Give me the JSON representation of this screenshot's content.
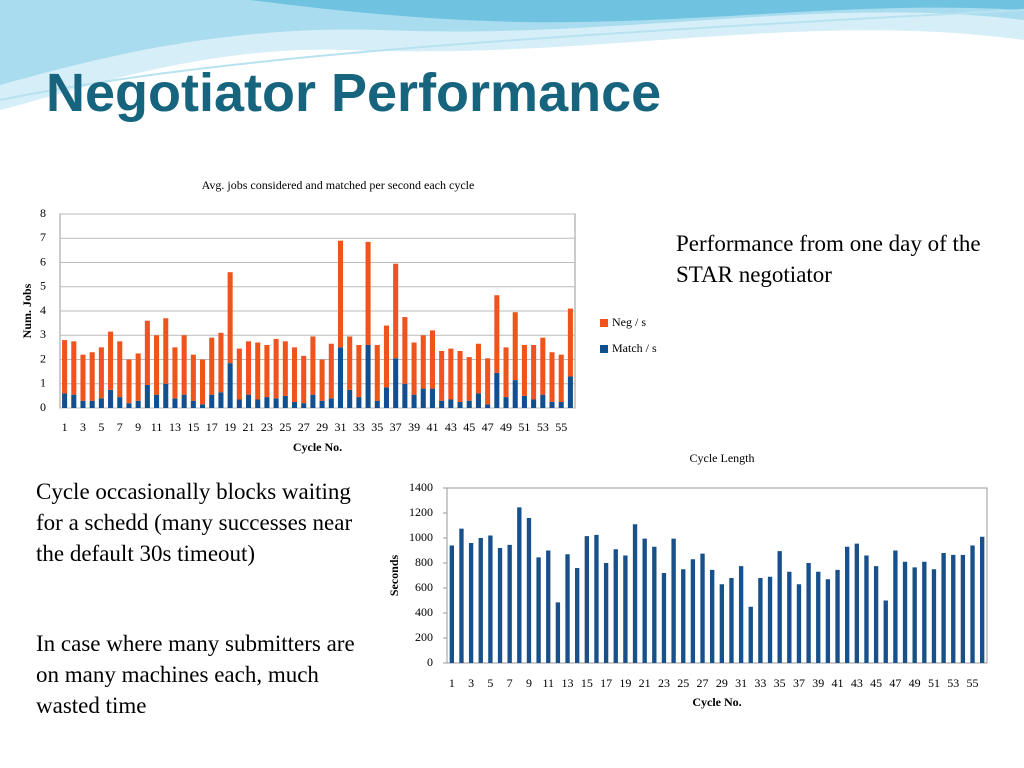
{
  "title": "Negotiator Performance",
  "side_text": "Performance from one day of the STAR negotiator",
  "body": [
    "Cycle occasionally blocks waiting for a schedd (many successes near the default 30s timeout)",
    "In case where many submitters are on many machines each, much wasted time"
  ],
  "chart_data": [
    {
      "type": "bar",
      "stacked": true,
      "title": "Avg. jobs considered and matched per second each cycle",
      "x_label": "Cycle No.",
      "y_label": "Num. Jobs",
      "categories": [
        1,
        null,
        3,
        null,
        5,
        null,
        7,
        null,
        9,
        null,
        11,
        null,
        13,
        null,
        15,
        null,
        17,
        null,
        19,
        null,
        21,
        null,
        23,
        null,
        25,
        null,
        27,
        null,
        29,
        null,
        31,
        null,
        33,
        null,
        35,
        null,
        37,
        null,
        39,
        null,
        41,
        null,
        43,
        null,
        45,
        null,
        47,
        null,
        49,
        null,
        51,
        null,
        53,
        null,
        55,
        null
      ],
      "series": [
        {
          "name": "Match / s",
          "color": "#124f8e",
          "values": [
            0.6,
            0.55,
            0.3,
            0.3,
            0.4,
            0.75,
            0.45,
            0.2,
            0.3,
            0.95,
            0.55,
            1.0,
            0.4,
            0.55,
            0.3,
            0.15,
            0.55,
            0.65,
            1.85,
            0.35,
            0.55,
            0.35,
            0.45,
            0.4,
            0.5,
            0.25,
            0.2,
            0.55,
            0.3,
            0.4,
            2.5,
            0.75,
            0.45,
            2.6,
            0.3,
            0.85,
            2.05,
            1.0,
            0.55,
            0.8,
            0.8,
            0.3,
            0.35,
            0.25,
            0.3,
            0.6,
            0.15,
            1.45,
            0.45,
            1.15,
            0.5,
            0.35,
            0.55,
            0.25,
            0.25,
            1.3
          ]
        },
        {
          "name": "Neg / s",
          "color": "#f0531c",
          "values": [
            2.2,
            2.2,
            1.9,
            2.0,
            2.1,
            2.4,
            2.3,
            1.8,
            1.95,
            2.65,
            2.45,
            2.7,
            2.1,
            2.45,
            1.9,
            1.85,
            2.35,
            2.45,
            3.75,
            2.1,
            2.2,
            2.35,
            2.15,
            2.45,
            2.25,
            2.25,
            1.95,
            2.4,
            1.7,
            2.25,
            4.4,
            2.2,
            2.15,
            4.25,
            2.3,
            2.55,
            3.9,
            2.75,
            2.15,
            2.2,
            2.4,
            2.05,
            2.1,
            2.1,
            1.8,
            2.05,
            1.9,
            3.2,
            2.05,
            2.8,
            2.1,
            2.25,
            2.35,
            2.05,
            1.95,
            2.8
          ]
        }
      ],
      "ylim": [
        0,
        8
      ],
      "yticks": [
        0,
        1,
        2,
        3,
        4,
        5,
        6,
        7,
        8
      ],
      "grid": true,
      "legend": "right"
    },
    {
      "type": "bar",
      "title": "Cycle Length",
      "x_label": "Cycle No.",
      "y_label": "Seconds",
      "categories": [
        1,
        null,
        3,
        null,
        5,
        null,
        7,
        null,
        9,
        null,
        11,
        null,
        13,
        null,
        15,
        null,
        17,
        null,
        19,
        null,
        21,
        null,
        23,
        null,
        25,
        null,
        27,
        null,
        29,
        null,
        31,
        null,
        33,
        null,
        35,
        null,
        37,
        null,
        39,
        null,
        41,
        null,
        43,
        null,
        45,
        null,
        47,
        null,
        49,
        null,
        51,
        null,
        53,
        null,
        55,
        null
      ],
      "series": [
        {
          "name": "Seconds",
          "color": "#17508a",
          "values": [
            940,
            1075,
            960,
            1000,
            1020,
            920,
            945,
            1245,
            1160,
            845,
            900,
            485,
            870,
            760,
            1015,
            1025,
            800,
            910,
            860,
            1110,
            995,
            930,
            720,
            995,
            750,
            830,
            875,
            745,
            630,
            680,
            775,
            450,
            680,
            690,
            895,
            730,
            630,
            800,
            730,
            670,
            745,
            930,
            955,
            860,
            775,
            500,
            900,
            810,
            765,
            810,
            750,
            880,
            865,
            865,
            940,
            1010
          ]
        }
      ],
      "ylim": [
        0,
        1400
      ],
      "yticks": [
        0,
        200,
        400,
        600,
        800,
        1000,
        1200,
        1400
      ],
      "grid": false
    }
  ]
}
